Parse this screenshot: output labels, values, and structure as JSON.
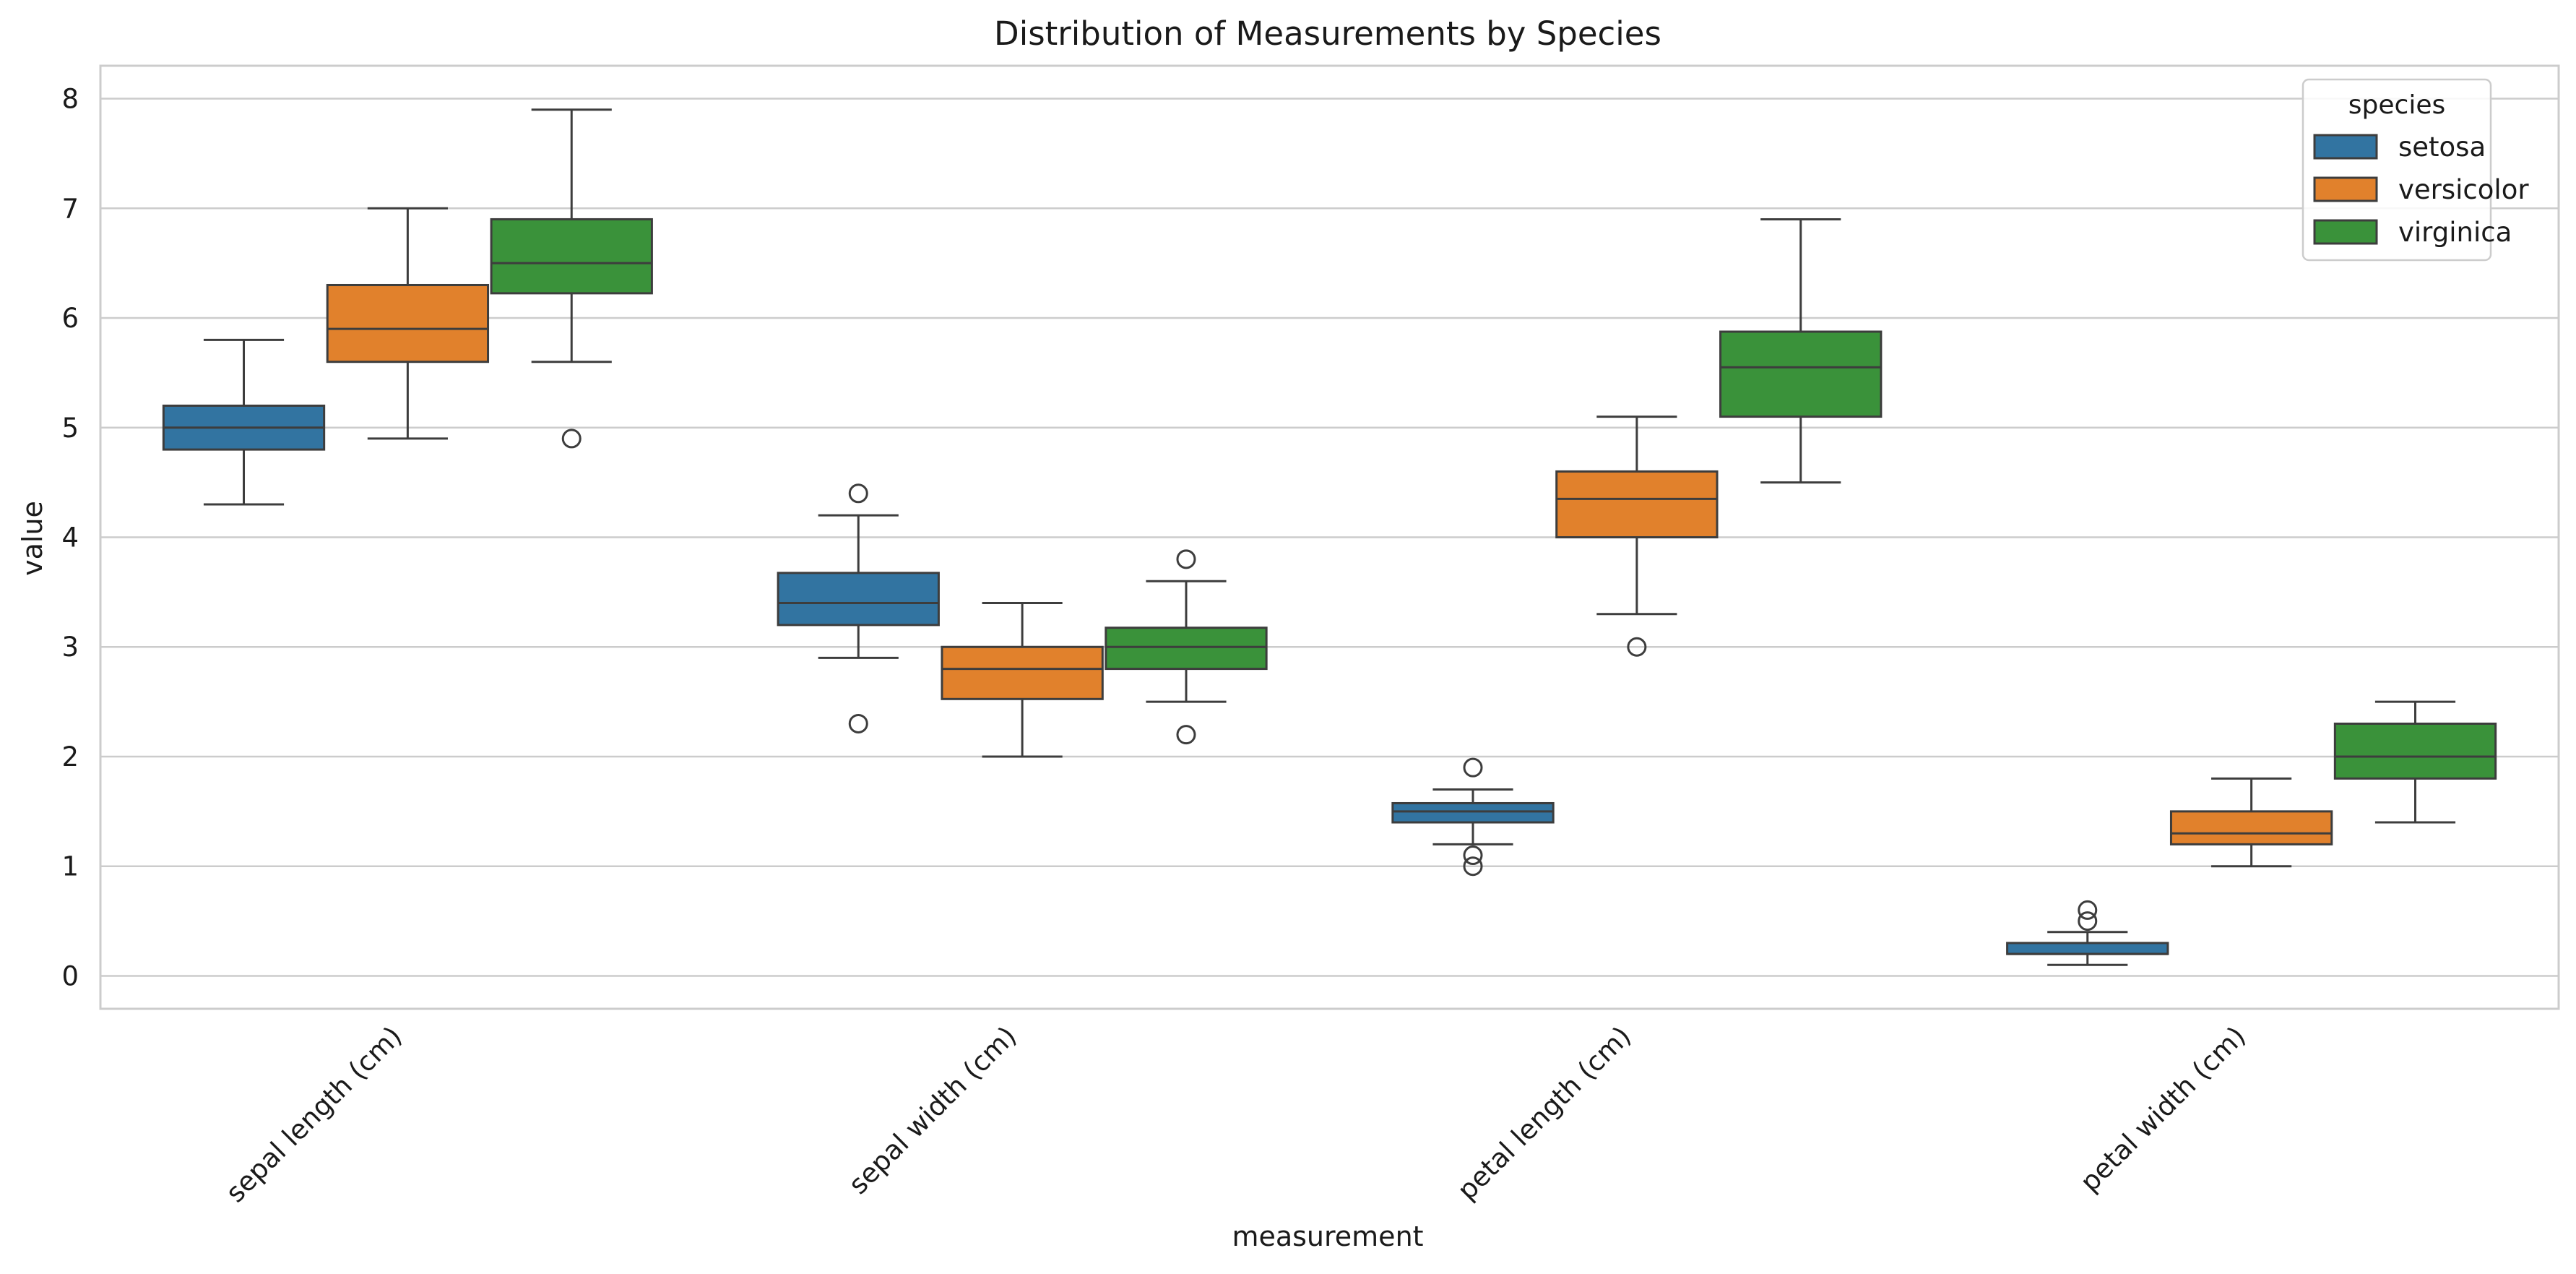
{
  "chart_data": {
    "type": "box",
    "title": "Distribution of Measurements by Species",
    "xlabel": "measurement",
    "ylabel": "value",
    "ylim": [
      -0.3,
      8.3
    ],
    "yticks": [
      0,
      1,
      2,
      3,
      4,
      5,
      6,
      7,
      8
    ],
    "grid": true,
    "categories": [
      "sepal length (cm)",
      "sepal width (cm)",
      "petal length (cm)",
      "petal width (cm)"
    ],
    "legend": {
      "title": "species",
      "placement": "top-right"
    },
    "series": [
      {
        "name": "setosa",
        "color": "#3274a1",
        "boxes": [
          {
            "whisker_low": 4.3,
            "q1": 4.8,
            "median": 5.0,
            "q3": 5.2,
            "whisker_high": 5.8,
            "outliers": []
          },
          {
            "whisker_low": 2.9,
            "q1": 3.2,
            "median": 3.4,
            "q3": 3.675,
            "whisker_high": 4.2,
            "outliers": [
              2.3,
              4.4
            ]
          },
          {
            "whisker_low": 1.2,
            "q1": 1.4,
            "median": 1.5,
            "q3": 1.575,
            "whisker_high": 1.7,
            "outliers": [
              1.0,
              1.1,
              1.9
            ]
          },
          {
            "whisker_low": 0.1,
            "q1": 0.2,
            "median": 0.2,
            "q3": 0.3,
            "whisker_high": 0.4,
            "outliers": [
              0.5,
              0.6
            ]
          }
        ]
      },
      {
        "name": "versicolor",
        "color": "#e1812c",
        "boxes": [
          {
            "whisker_low": 4.9,
            "q1": 5.6,
            "median": 5.9,
            "q3": 6.3,
            "whisker_high": 7.0,
            "outliers": []
          },
          {
            "whisker_low": 2.0,
            "q1": 2.525,
            "median": 2.8,
            "q3": 3.0,
            "whisker_high": 3.4,
            "outliers": []
          },
          {
            "whisker_low": 3.3,
            "q1": 4.0,
            "median": 4.35,
            "q3": 4.6,
            "whisker_high": 5.1,
            "outliers": [
              3.0
            ]
          },
          {
            "whisker_low": 1.0,
            "q1": 1.2,
            "median": 1.3,
            "q3": 1.5,
            "whisker_high": 1.8,
            "outliers": []
          }
        ]
      },
      {
        "name": "virginica",
        "color": "#3a923a",
        "boxes": [
          {
            "whisker_low": 5.6,
            "q1": 6.225,
            "median": 6.5,
            "q3": 6.9,
            "whisker_high": 7.9,
            "outliers": [
              4.9
            ]
          },
          {
            "whisker_low": 2.5,
            "q1": 2.8,
            "median": 3.0,
            "q3": 3.175,
            "whisker_high": 3.6,
            "outliers": [
              2.2,
              3.8
            ]
          },
          {
            "whisker_low": 4.5,
            "q1": 5.1,
            "median": 5.55,
            "q3": 5.875,
            "whisker_high": 6.9,
            "outliers": []
          },
          {
            "whisker_low": 1.4,
            "q1": 1.8,
            "median": 2.0,
            "q3": 2.3,
            "whisker_high": 2.5,
            "outliers": []
          }
        ]
      }
    ]
  }
}
